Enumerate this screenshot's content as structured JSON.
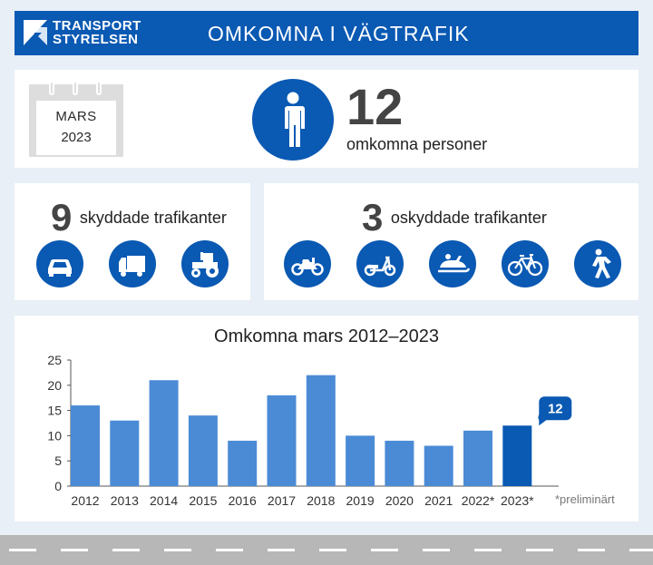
{
  "header": {
    "logo_line1": "TRANSPORT",
    "logo_line2": "STYRELSEN",
    "title": "OMKOMNA I VÄGTRAFIK"
  },
  "summary": {
    "calendar_month": "MARS",
    "calendar_year": "2023",
    "total": "12",
    "total_caption": "omkomna personer"
  },
  "protected": {
    "count": "9",
    "label": "skyddade trafikanter",
    "icons": [
      "car-icon",
      "truck-icon",
      "tractor-icon"
    ]
  },
  "unprotected": {
    "count": "3",
    "label": "oskyddade trafikanter",
    "icons": [
      "motorcycle-icon",
      "moped-icon",
      "snowmobile-icon",
      "bicycle-icon",
      "pedestrian-icon"
    ]
  },
  "colors": {
    "brand_blue": "#0a59b3",
    "bar_blue": "#4b8bd6",
    "bar_highlight": "#0a59b3",
    "background": "#e8eff6"
  },
  "chart_data": {
    "type": "bar",
    "title": "Omkomna mars 2012–2023",
    "categories": [
      "2012",
      "2013",
      "2014",
      "2015",
      "2016",
      "2017",
      "2018",
      "2019",
      "2020",
      "2021",
      "2022*",
      "2023*"
    ],
    "values": [
      16,
      13,
      21,
      14,
      9,
      18,
      22,
      10,
      9,
      8,
      11,
      12
    ],
    "highlight_index": 11,
    "callout_value": "12",
    "ylim": [
      0,
      25
    ],
    "yticks": [
      0,
      5,
      10,
      15,
      20,
      25
    ],
    "grid": false,
    "xlabel": "",
    "ylabel": "",
    "footnote": "*preliminärt"
  }
}
